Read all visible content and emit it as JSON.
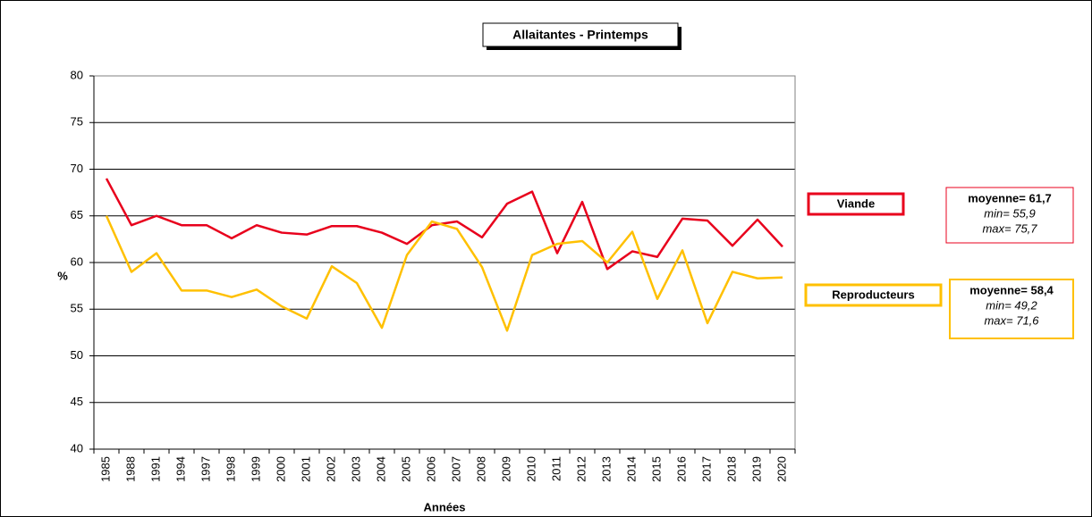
{
  "chart_data": {
    "type": "line",
    "title": "Allaitantes - Printemps",
    "x_label": "Années",
    "y_label": "%",
    "categories": [
      "1985",
      "1988",
      "1991",
      "1994",
      "1997",
      "1998",
      "1999",
      "2000",
      "2001",
      "2002",
      "2003",
      "2004",
      "2005",
      "2006",
      "2007",
      "2008",
      "2009",
      "2010",
      "2011",
      "2012",
      "2013",
      "2014",
      "2015",
      "2016",
      "2017",
      "2018",
      "2019",
      "2020"
    ],
    "series": [
      {
        "name": "Viande",
        "color": "#e8001c",
        "values": [
          69,
          64,
          65,
          64,
          64,
          62.6,
          64,
          63.2,
          63,
          63.9,
          63.9,
          63.2,
          62,
          64,
          64.4,
          62.7,
          66.3,
          67.6,
          61,
          66.5,
          59.3,
          61.2,
          60.6,
          64.7,
          64.5,
          61.8,
          64.6,
          61.7
        ],
        "stats": {
          "mean": "moyenne= 61,7",
          "min": "min= 55,9",
          "max": "max= 75,7"
        }
      },
      {
        "name": "Reproducteurs",
        "color": "#ffc000",
        "values": [
          65,
          59,
          61,
          57,
          57,
          56.3,
          57.1,
          55.3,
          54,
          59.6,
          57.8,
          53,
          60.8,
          64.4,
          63.6,
          59.5,
          52.7,
          60.8,
          62,
          62.3,
          60,
          63.3,
          56.1,
          61.3,
          53.5,
          59,
          58.3,
          58.4
        ],
        "stats": {
          "mean": "moyenne= 58,4",
          "min": "min= 49,2",
          "max": "max= 71,6"
        }
      }
    ],
    "ylim": [
      40,
      80
    ],
    "yticks": [
      40,
      45,
      50,
      55,
      60,
      65,
      70,
      75,
      80
    ],
    "grid": true
  }
}
